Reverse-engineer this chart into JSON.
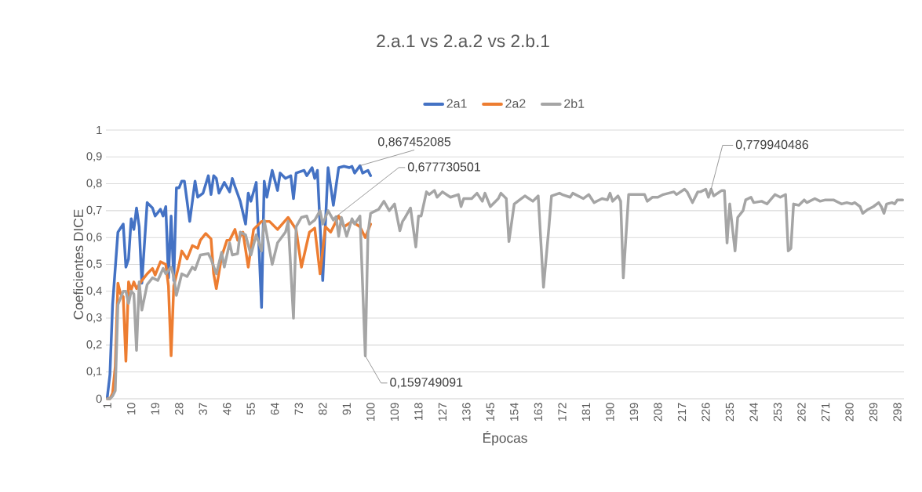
{
  "chart_data": {
    "type": "line",
    "title": "2.a.1 vs 2.a.2 vs 2.b.1",
    "xlabel": "Épocas",
    "ylabel": "Coeficientes DICE",
    "xlim": [
      0.5,
      300.5
    ],
    "xticks": [
      1,
      10,
      19,
      28,
      37,
      46,
      55,
      64,
      73,
      82,
      91,
      100,
      109,
      118,
      127,
      136,
      145,
      154,
      163,
      172,
      181,
      190,
      199,
      208,
      217,
      226,
      235,
      244,
      253,
      262,
      271,
      280,
      289,
      298
    ],
    "ylim": [
      0,
      1
    ],
    "yticks": [
      0,
      {
        "value": 0.1,
        "label": "0,1"
      },
      {
        "value": 0.2,
        "label": "0,2"
      },
      {
        "value": 0.3,
        "label": "0,3"
      },
      {
        "value": 0.4,
        "label": "0,4"
      },
      {
        "value": 0.5,
        "label": "0,5"
      },
      {
        "value": 0.6,
        "label": "0,6"
      },
      {
        "value": 0.7,
        "label": "0,7"
      },
      {
        "value": 0.8,
        "label": "0,8"
      },
      {
        "value": 0.9,
        "label": "0,9"
      },
      1
    ],
    "grid": "y",
    "legend": "top",
    "series": [
      {
        "name": "2a1",
        "color": "#4472c4",
        "x": [
          1,
          2,
          3,
          5,
          7,
          8,
          9,
          10,
          11,
          12,
          13,
          14,
          16,
          18,
          19,
          21,
          22,
          23,
          24,
          25,
          26,
          27,
          28,
          29,
          30,
          32,
          34,
          35,
          37,
          39,
          40,
          41,
          42,
          43,
          45,
          47,
          48,
          49,
          51,
          53,
          54,
          55,
          57,
          59,
          60,
          61,
          63,
          65,
          66,
          68,
          70,
          71,
          72,
          75,
          76,
          78,
          79,
          80,
          82,
          84,
          86,
          88,
          90,
          92,
          93,
          94,
          96,
          97,
          99,
          100
        ],
        "values": [
          0.005,
          0.09,
          0.35,
          0.62,
          0.65,
          0.49,
          0.52,
          0.67,
          0.63,
          0.71,
          0.64,
          0.43,
          0.73,
          0.71,
          0.68,
          0.705,
          0.68,
          0.715,
          0.45,
          0.68,
          0.44,
          0.785,
          0.785,
          0.81,
          0.81,
          0.66,
          0.81,
          0.75,
          0.765,
          0.83,
          0.76,
          0.83,
          0.82,
          0.765,
          0.805,
          0.77,
          0.82,
          0.79,
          0.735,
          0.65,
          0.765,
          0.735,
          0.805,
          0.34,
          0.81,
          0.75,
          0.85,
          0.775,
          0.84,
          0.82,
          0.83,
          0.745,
          0.84,
          0.85,
          0.83,
          0.86,
          0.82,
          0.85,
          0.44,
          0.86,
          0.72,
          0.86,
          0.865,
          0.86,
          0.865,
          0.84,
          0.867452085,
          0.84,
          0.85,
          0.83
        ]
      },
      {
        "name": "2a2",
        "color": "#ed7d31",
        "x": [
          1,
          2,
          3,
          4,
          5,
          6,
          7,
          8,
          9,
          10,
          11,
          12,
          14,
          16,
          18,
          19,
          21,
          23,
          24,
          25,
          26,
          28,
          29,
          31,
          33,
          35,
          36,
          38,
          40,
          41,
          42,
          44,
          46,
          47,
          49,
          50,
          52,
          54,
          56,
          59,
          62,
          65,
          69,
          72,
          74,
          77,
          79,
          81,
          83,
          85,
          88,
          90,
          93,
          96,
          98,
          100
        ],
        "values": [
          0,
          0,
          0.02,
          0.12,
          0.43,
          0.39,
          0.38,
          0.14,
          0.435,
          0.405,
          0.435,
          0.41,
          0.44,
          0.465,
          0.485,
          0.46,
          0.51,
          0.5,
          0.42,
          0.16,
          0.42,
          0.5,
          0.55,
          0.52,
          0.57,
          0.56,
          0.59,
          0.615,
          0.595,
          0.465,
          0.41,
          0.53,
          0.59,
          0.59,
          0.63,
          0.59,
          0.62,
          0.49,
          0.63,
          0.66,
          0.66,
          0.63,
          0.675,
          0.63,
          0.49,
          0.62,
          0.635,
          0.465,
          0.64,
          0.62,
          0.68,
          0.64,
          0.66,
          0.64,
          0.6,
          0.65
        ]
      },
      {
        "name": "2b1",
        "color": "#a5a5a5",
        "x": [
          1,
          2,
          3,
          4,
          5,
          7,
          8,
          9,
          10,
          11,
          12,
          13,
          14,
          16,
          18,
          20,
          22,
          23,
          25,
          26,
          27,
          29,
          31,
          33,
          34,
          36,
          39,
          40,
          42,
          44,
          45,
          47,
          48,
          50,
          51,
          53,
          55,
          57,
          59,
          60,
          63,
          65,
          68,
          69,
          71,
          72,
          74,
          76,
          77,
          79,
          81,
          82,
          84,
          86,
          87,
          88,
          89,
          91,
          93,
          94,
          96,
          98,
          99,
          100,
          102,
          103,
          105,
          107,
          109,
          111,
          112,
          113,
          115,
          117,
          118,
          119,
          121,
          122,
          124,
          125,
          127,
          130,
          133,
          134,
          135,
          138,
          140,
          142,
          143,
          145,
          148,
          149,
          151,
          152,
          154,
          158,
          161,
          163,
          165,
          167,
          168,
          171,
          172,
          175,
          176,
          180,
          182,
          184,
          187,
          189,
          190,
          191,
          193,
          194,
          195,
          197,
          201,
          203,
          204,
          206,
          208,
          210,
          214,
          215,
          218,
          219,
          221,
          223,
          224,
          226,
          227,
          228,
          229,
          232,
          233,
          234,
          235,
          237,
          238,
          240,
          241,
          243,
          244,
          247,
          249,
          252,
          254,
          256,
          257,
          258,
          259,
          261,
          263,
          264,
          267,
          269,
          271,
          274,
          277,
          279,
          281,
          282,
          284,
          285,
          287,
          289,
          291,
          292,
          293,
          294,
          296,
          297,
          298,
          300
        ],
        "values": [
          0,
          0,
          0.01,
          0.03,
          0.35,
          0.4,
          0.4,
          0.355,
          0.4,
          0.39,
          0.18,
          0.435,
          0.33,
          0.425,
          0.45,
          0.44,
          0.485,
          0.465,
          0.49,
          0.455,
          0.385,
          0.465,
          0.455,
          0.49,
          0.48,
          0.535,
          0.54,
          0.52,
          0.465,
          0.545,
          0.49,
          0.58,
          0.535,
          0.54,
          0.62,
          0.61,
          0.535,
          0.61,
          0.55,
          0.665,
          0.5,
          0.58,
          0.62,
          0.66,
          0.3,
          0.64,
          0.675,
          0.68,
          0.65,
          0.665,
          0.7,
          0.65,
          0.7,
          0.665,
          0.677730501,
          0.605,
          0.675,
          0.605,
          0.67,
          0.65,
          0.68,
          0.159749091,
          0.615,
          0.69,
          0.7,
          0.705,
          0.735,
          0.7,
          0.725,
          0.625,
          0.66,
          0.675,
          0.71,
          0.565,
          0.68,
          0.68,
          0.77,
          0.76,
          0.775,
          0.75,
          0.77,
          0.75,
          0.76,
          0.715,
          0.745,
          0.745,
          0.765,
          0.735,
          0.765,
          0.715,
          0.745,
          0.765,
          0.745,
          0.585,
          0.725,
          0.755,
          0.735,
          0.755,
          0.415,
          0.635,
          0.755,
          0.765,
          0.76,
          0.75,
          0.765,
          0.745,
          0.76,
          0.73,
          0.745,
          0.74,
          0.765,
          0.735,
          0.755,
          0.735,
          0.45,
          0.76,
          0.76,
          0.76,
          0.735,
          0.75,
          0.75,
          0.76,
          0.77,
          0.76,
          0.78,
          0.77,
          0.73,
          0.77,
          0.77,
          0.78,
          0.75,
          0.779940486,
          0.755,
          0.775,
          0.775,
          0.58,
          0.725,
          0.55,
          0.675,
          0.7,
          0.74,
          0.75,
          0.73,
          0.735,
          0.725,
          0.76,
          0.75,
          0.76,
          0.55,
          0.56,
          0.725,
          0.72,
          0.74,
          0.73,
          0.745,
          0.735,
          0.74,
          0.74,
          0.725,
          0.73,
          0.725,
          0.73,
          0.715,
          0.69,
          0.705,
          0.715,
          0.73,
          0.715,
          0.69,
          0.725,
          0.73,
          0.725,
          0.74,
          0.74
        ]
      }
    ],
    "annotations": [
      {
        "text": "0,867452085",
        "x": 96,
        "y": 0.867452085
      },
      {
        "text": "0,677730501",
        "x": 87,
        "y": 0.677730501
      },
      {
        "text": "0,159749091",
        "x": 98,
        "y": 0.159749091
      },
      {
        "text": "0,779940486",
        "x": 228,
        "y": 0.779940486
      }
    ]
  }
}
